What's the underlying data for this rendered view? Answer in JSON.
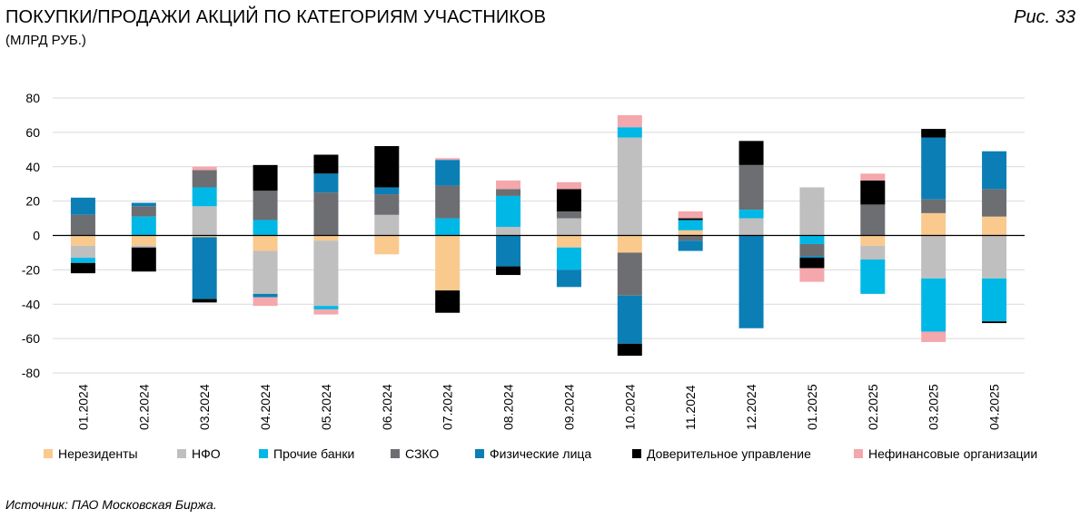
{
  "header": {
    "title": "ПОКУПКИ/ПРОДАЖИ АКЦИЙ ПО КАТЕГОРИЯМ УЧАСТНИКОВ",
    "subtitle": "(МЛРД РУБ.)",
    "figure_label": "Рис. 33"
  },
  "footer": {
    "source": "Источник: ПАО Московская Биржа."
  },
  "chart_data": {
    "type": "bar",
    "stacked": true,
    "categories": [
      "01.2024",
      "02.2024",
      "03.2024",
      "04.2024",
      "05.2024",
      "06.2024",
      "07.2024",
      "08.2024",
      "09.2024",
      "10.2024",
      "11.2024",
      "12.2024",
      "01.2025",
      "02.2025",
      "03.2025",
      "04.2025"
    ],
    "ylim": [
      -80,
      80
    ],
    "yticks": [
      80,
      60,
      40,
      20,
      0,
      -20,
      -40,
      -60,
      -80
    ],
    "grid": true,
    "legend_position": "bottom",
    "series": [
      {
        "name": "Нерезиденты",
        "color": "#FAC98E",
        "values": [
          -6,
          -6,
          -1,
          -9,
          -3,
          -11,
          -32,
          0,
          -7,
          -10,
          3,
          0,
          0,
          -6,
          13,
          11
        ]
      },
      {
        "name": "НФО",
        "color": "#BFBFBF",
        "values": [
          -7,
          -1,
          17,
          -25,
          -38,
          12,
          0,
          5,
          10,
          57,
          0,
          10,
          28,
          -8,
          -25,
          -25
        ]
      },
      {
        "name": "Прочие банки",
        "color": "#00B8E6",
        "values": [
          -3,
          11,
          11,
          9,
          -2,
          0,
          10,
          18,
          -13,
          6,
          6,
          5,
          -5,
          -20,
          -31,
          -25
        ]
      },
      {
        "name": "СЗКО",
        "color": "#6D6E71",
        "values": [
          12,
          6,
          10,
          17,
          25,
          12,
          19,
          4,
          4,
          -25,
          -3,
          26,
          -7,
          18,
          8,
          16
        ]
      },
      {
        "name": "Физические лица",
        "color": "#0B7FB5",
        "values": [
          10,
          2,
          -36,
          -2,
          11,
          4,
          15,
          -18,
          -10,
          -28,
          -6,
          -54,
          -1,
          0,
          36,
          22
        ]
      },
      {
        "name": "Доверительное управление",
        "color": "#000000",
        "values": [
          -6,
          -14,
          -2,
          15,
          11,
          24,
          -13,
          -5,
          13,
          -7,
          1,
          14,
          -6,
          14,
          5,
          -1
        ]
      },
      {
        "name": "Нефинансовые организации",
        "color": "#F4A7AC",
        "values": [
          0,
          0,
          2,
          -5,
          -3,
          0,
          1,
          5,
          4,
          7,
          4,
          0,
          -8,
          4,
          -6,
          0
        ]
      }
    ]
  }
}
